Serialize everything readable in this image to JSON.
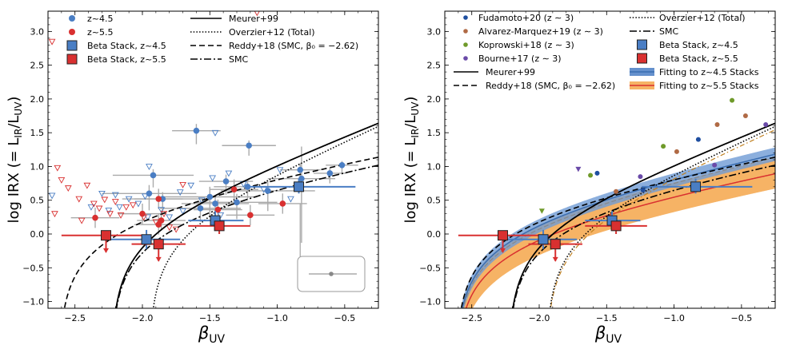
{
  "chart_data": [
    {
      "type": "scatter",
      "panel": "left",
      "xlabel": "β_UV",
      "ylabel": "log IRX (= L_IR/L_UV)",
      "xlim": [
        -2.7,
        -0.25
      ],
      "ylim": [
        -1.1,
        3.3
      ],
      "xticks": [
        -2.5,
        -2.0,
        -1.5,
        -1.0,
        -0.5
      ],
      "xtick_labels": [
        "−2.5",
        "−2.0",
        "−1.5",
        "−1.0",
        "−0.5"
      ],
      "yticks": [
        -1.0,
        -0.5,
        0.0,
        0.5,
        1.0,
        1.5,
        2.0,
        2.5,
        3.0
      ],
      "ytick_labels": [
        "−1.0",
        "−0.5",
        "0.0",
        "0.5",
        "1.0",
        "1.5",
        "2.0",
        "2.5",
        "3.0"
      ],
      "legend": [
        {
          "label": "z~4.5",
          "marker": "circle",
          "color": "#4a7ec4"
        },
        {
          "label": "z~5.5",
          "marker": "circle",
          "color": "#d93030"
        },
        {
          "label": "Beta Stack, z~4.5",
          "marker": "square",
          "color": "#4a7ec4"
        },
        {
          "label": "Beta Stack, z~5.5",
          "marker": "square",
          "color": "#d93030"
        },
        {
          "label": "Meurer+99",
          "line": "solid"
        },
        {
          "label": "Overzier+12 (Total)",
          "line": "dotted"
        },
        {
          "label": "Reddy+18 (SMC, β₀ = −2.62)",
          "line": "dashed"
        },
        {
          "label": "SMC",
          "line": "dashdot"
        }
      ],
      "series": [
        {
          "name": "z~4.5 detections",
          "color": "#4a7ec4",
          "x": [
            -1.6,
            -1.21,
            -1.92,
            -0.83,
            -0.61,
            -0.52,
            -1.38,
            -1.22,
            -1.46,
            -1.5,
            -1.57,
            -1.3,
            -1.07,
            -0.82,
            -1.95,
            -1.85
          ],
          "y": [
            1.53,
            1.31,
            0.87,
            0.95,
            0.9,
            1.02,
            0.78,
            0.7,
            0.45,
            0.55,
            0.38,
            0.47,
            0.64,
            0.82,
            0.6,
            0.52
          ]
        },
        {
          "name": "z~5.5 detections",
          "color": "#d93030",
          "x": [
            -2.35,
            -2.0,
            -1.88,
            -1.86,
            -1.88,
            -1.44,
            -1.32,
            -1.2,
            -0.96
          ],
          "y": [
            0.24,
            0.3,
            0.52,
            0.2,
            0.14,
            0.36,
            0.66,
            0.28,
            0.45
          ]
        },
        {
          "name": "z~4.5 upper limits",
          "color": "#4a7ec4",
          "x": [
            -2.67,
            -2.3,
            -2.25,
            -2.2,
            -2.1,
            -2.03,
            -1.98,
            -1.95,
            -1.86,
            -1.8,
            -1.72,
            -1.64,
            -1.56,
            -1.48,
            -1.42,
            -1.36,
            -1.25,
            -1.1,
            -0.98,
            -0.9,
            -1.46,
            -2.17,
            -2.38,
            -1.7,
            -1.96
          ],
          "y": [
            0.57,
            0.6,
            0.35,
            0.58,
            0.52,
            0.45,
            0.56,
            1.0,
            0.36,
            0.25,
            0.62,
            0.72,
            0.5,
            0.83,
            0.28,
            0.9,
            0.74,
            0.66,
            0.95,
            0.52,
            1.5,
            0.4,
            0.4,
            0.34,
            0.25
          ]
        },
        {
          "name": "z~5.5 upper limits",
          "color": "#d93030",
          "x": [
            -2.67,
            -2.63,
            -2.55,
            -2.47,
            -2.41,
            -2.36,
            -2.32,
            -2.28,
            -2.24,
            -2.2,
            -2.16,
            -2.12,
            -2.07,
            -1.99,
            -1.9,
            -1.84,
            -1.8,
            -1.75,
            -1.7,
            -2.65,
            -1.15,
            -2.6,
            -2.45
          ],
          "y": [
            2.85,
            0.98,
            0.68,
            0.52,
            0.72,
            0.45,
            0.38,
            0.51,
            0.3,
            0.48,
            0.28,
            0.4,
            0.43,
            0.25,
            0.18,
            0.3,
            0.1,
            0.07,
            0.73,
            0.3,
            3.28,
            0.8,
            0.2
          ]
        },
        {
          "name": "Beta Stack, z~4.5",
          "color": "#4a7ec4",
          "x": [
            -1.97,
            -1.46,
            -0.84
          ],
          "y": [
            -0.08,
            0.2,
            0.7
          ]
        },
        {
          "name": "Beta Stack, z~5.5",
          "color": "#d93030",
          "x": [
            -2.27,
            -1.88,
            -1.43
          ],
          "y": [
            -0.02,
            -0.15,
            0.12
          ]
        }
      ]
    },
    {
      "type": "scatter",
      "panel": "right",
      "xlabel": "β_UV",
      "ylabel": "log IRX (= L_IR/L_UV)",
      "xlim": [
        -2.7,
        -0.25
      ],
      "ylim": [
        -1.1,
        3.3
      ],
      "xticks": [
        -2.5,
        -2.0,
        -1.5,
        -1.0,
        -0.5
      ],
      "xtick_labels": [
        "−2.5",
        "−2.0",
        "−1.5",
        "−1.0",
        "−0.5"
      ],
      "yticks": [
        -1.0,
        -0.5,
        0.0,
        0.5,
        1.0,
        1.5,
        2.0,
        2.5,
        3.0
      ],
      "ytick_labels": [
        "−1.0",
        "−0.5",
        "0.0",
        "0.5",
        "1.0",
        "1.5",
        "2.0",
        "2.5",
        "3.0"
      ],
      "legend": [
        {
          "label": "Fudamoto+20 (z ∼ 3)",
          "marker": "dot",
          "color": "#1f4fa0"
        },
        {
          "label": "Alvarez-Marquez+19 (z ∼ 3)",
          "marker": "dot",
          "color": "#b06a45"
        },
        {
          "label": "Koprowski+18 (z ∼ 3)",
          "marker": "dot",
          "color": "#6f9a2a"
        },
        {
          "label": "Bourne+17 (z ∼ 3)",
          "marker": "dot",
          "color": "#6a4aa8"
        },
        {
          "label": "Meurer+99",
          "line": "solid"
        },
        {
          "label": "Reddy+18 (SMC, β₀ = −2.62)",
          "line": "dashed"
        },
        {
          "label": "Overzier+12 (Total)",
          "line": "dotted"
        },
        {
          "label": "SMC",
          "line": "dashdot"
        },
        {
          "label": "Beta Stack, z~4.5",
          "marker": "square",
          "color": "#4a7ec4"
        },
        {
          "label": "Beta Stack, z~5.5",
          "marker": "square",
          "color": "#d93030"
        },
        {
          "label": "Fitting to z~4.5 Stacks",
          "line": "band",
          "color": "#4a7ec4"
        },
        {
          "label": "Fitting to z~5.5 Stacks",
          "line": "band",
          "color": "#f5a64a"
        }
      ],
      "series": [
        {
          "name": "Fudamoto+20 (z ∼ 3)",
          "color": "#1f4fa0",
          "x": [
            -1.57,
            -1.23,
            -0.82
          ],
          "y": [
            0.9,
            0.65,
            1.4
          ]
        },
        {
          "name": "Alvarez-Marquez+19 (z ∼ 3)",
          "color": "#b06a45",
          "x": [
            -1.43,
            -0.98,
            -0.68,
            -0.47
          ],
          "y": [
            0.63,
            1.22,
            1.62,
            1.75
          ]
        },
        {
          "name": "Koprowski+18 (z ∼ 3)",
          "color": "#6f9a2a",
          "x": [
            -1.98,
            -1.62,
            -1.08,
            -0.57
          ],
          "y": [
            0.34,
            0.87,
            1.3,
            1.98
          ]
        },
        {
          "name": "Bourne+17 (z ∼ 3)",
          "color": "#6a4aa8",
          "x": [
            -1.71,
            -1.25,
            -0.7,
            -0.32
          ],
          "y": [
            0.96,
            0.85,
            1.02,
            1.62
          ]
        },
        {
          "name": "Beta Stack, z~4.5",
          "color": "#4a7ec4",
          "x": [
            -1.97,
            -1.46,
            -0.84
          ],
          "y": [
            -0.08,
            0.2,
            0.7
          ]
        },
        {
          "name": "Beta Stack, z~5.5",
          "color": "#d93030",
          "x": [
            -2.27,
            -1.88,
            -1.43
          ],
          "y": [
            -0.02,
            -0.15,
            0.12
          ]
        }
      ]
    }
  ]
}
